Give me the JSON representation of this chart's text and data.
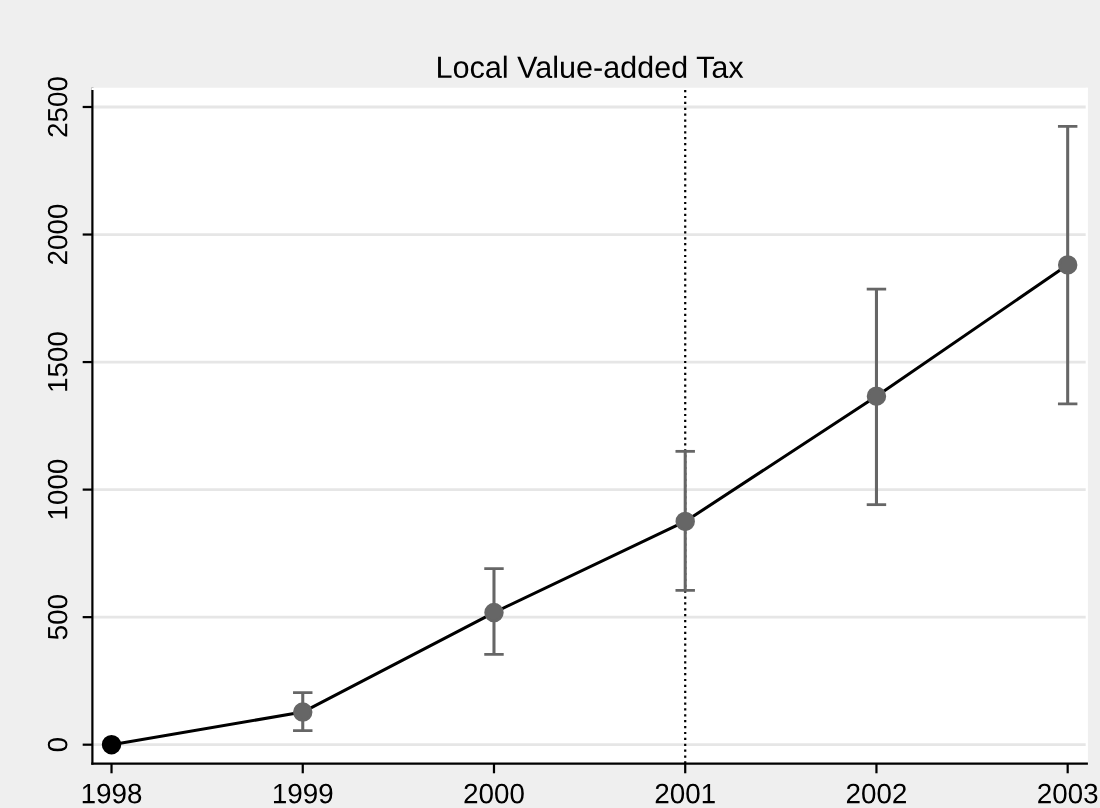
{
  "chart_data": {
    "type": "line",
    "title": "Local Value-added Tax",
    "x": [
      1998,
      1999,
      2000,
      2001,
      2002,
      2003
    ],
    "series": [
      {
        "color": "#000000",
        "colors": [
          "#000000",
          "#666666",
          "#666666",
          "#666666",
          "#666666",
          "#666666"
        ],
        "values": [
          0,
          128,
          518,
          875,
          1366,
          1881
        ],
        "errors": [
          null,
          [
            55,
            204
          ],
          [
            354,
            690
          ],
          [
            605,
            1150
          ],
          [
            941,
            1786
          ],
          [
            1336,
            2424
          ]
        ]
      }
    ],
    "xlim": [
      1997.9,
      2003.1
    ],
    "xticks": [
      1998,
      1999,
      2000,
      2001,
      2002,
      2003
    ],
    "ylim": [
      -74,
      2571
    ],
    "yticks": [
      0,
      500,
      1000,
      1500,
      2000,
      2500
    ],
    "ref_lines": [
      {
        "axis": "x",
        "value": 2001,
        "color": "#000000",
        "line_style": "dotted"
      }
    ],
    "grid": "y",
    "marker": "circle",
    "line_style": "solid",
    "legend": false
  }
}
